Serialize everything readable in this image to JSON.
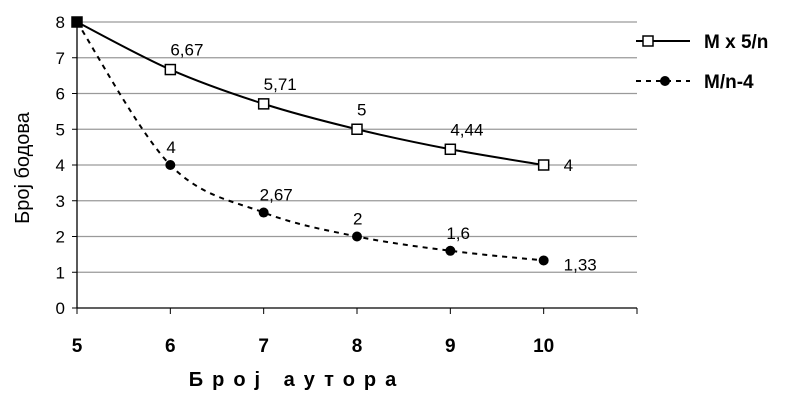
{
  "chart_data": {
    "type": "line",
    "xlabel": "Број аутора",
    "ylabel": "Број бодова",
    "xlim": [
      5,
      11
    ],
    "ylim": [
      0,
      8
    ],
    "xticks": [
      "5",
      "6",
      "7",
      "8",
      "9",
      "10"
    ],
    "yticks": [
      "0",
      "1",
      "2",
      "3",
      "4",
      "5",
      "6",
      "7",
      "8"
    ],
    "grid": "horizontal",
    "legend_position": "right",
    "series": [
      {
        "name": "M x 5/n",
        "line_style": "solid",
        "marker": "open-square",
        "x": [
          5,
          6,
          7,
          8,
          9,
          10
        ],
        "y": [
          8,
          6.67,
          5.71,
          5,
          4.44,
          4
        ],
        "labels": [
          "",
          "6,67",
          "5,71",
          "5",
          "4,44",
          "4"
        ]
      },
      {
        "name": "M/n-4",
        "line_style": "dashed",
        "marker": "filled-circle",
        "x": [
          5,
          6,
          7,
          8,
          9,
          10
        ],
        "y": [
          8,
          4,
          2.67,
          2,
          1.6,
          1.33
        ],
        "labels": [
          "",
          "4",
          "2,67",
          "2",
          "1,6",
          "1,33"
        ]
      }
    ]
  }
}
